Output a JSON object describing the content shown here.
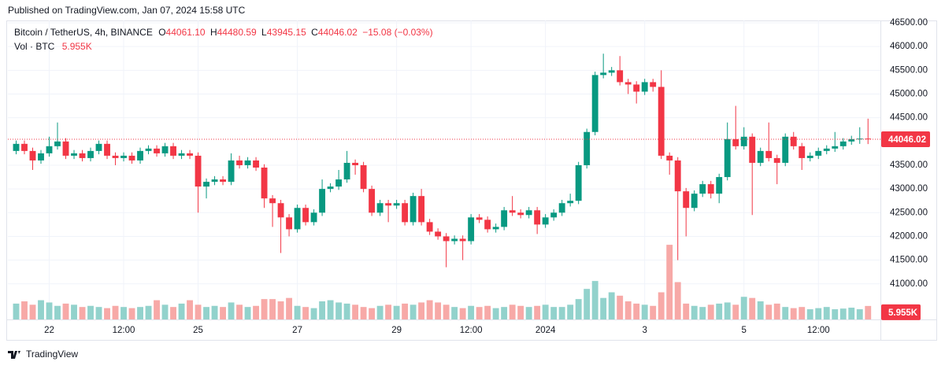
{
  "header": {
    "published": "Published on TradingView.com, Jan 07, 2024 15:58 UTC"
  },
  "chart_data": {
    "type": "candlestick",
    "title": "Bitcoin / TetherUS, 4h, BINANCE",
    "ohlc_keys": [
      "O",
      "H",
      "L",
      "C"
    ],
    "last_labels": {
      "open": "44061.10",
      "high": "44480.59",
      "low": "43945.15",
      "close": "44046.02",
      "change": "−15.08 (−0.03%)"
    },
    "open": [
      43800,
      43950,
      43800,
      43600,
      43750,
      43900,
      44000,
      43700,
      43750,
      43650,
      43800,
      43950,
      43700,
      43650,
      43700,
      43600,
      43800,
      43850,
      43750,
      43900,
      43700,
      43750,
      43700,
      43050,
      43150,
      43200,
      43150,
      43600,
      43500,
      43600,
      43450,
      42800,
      42700,
      42400,
      42150,
      42600,
      42300,
      42500,
      43000,
      43050,
      43200,
      43550,
      43500,
      43000,
      42500,
      42700,
      42650,
      42700,
      42300,
      42850,
      42300,
      42100,
      42000,
      41900,
      41950,
      41900,
      42400,
      42350,
      42150,
      42200,
      42550,
      42500,
      42450,
      42550,
      42250,
      42400,
      42500,
      42700,
      42750,
      43500,
      44200,
      45400,
      45450,
      45500,
      45250,
      45200,
      45050,
      45250,
      45150,
      43700,
      43600,
      42950,
      42600,
      42900,
      43100,
      42900,
      43250,
      44050,
      43900,
      44100,
      43550,
      43800,
      43650,
      43550,
      44100,
      43900,
      43650,
      43700,
      43800,
      43850,
      43900,
      44000,
      44050,
      44061.1
    ],
    "high": [
      44020,
      44020,
      43870,
      43820,
      44100,
      44400,
      44070,
      43820,
      43820,
      43870,
      44020,
      44020,
      43770,
      43770,
      43770,
      43870,
      43920,
      43920,
      43970,
      43970,
      43820,
      43820,
      43770,
      43220,
      43270,
      43270,
      43750,
      43700,
      43670,
      43670,
      43520,
      42870,
      42770,
      42470,
      42670,
      42670,
      42570,
      43200,
      43120,
      43400,
      43800,
      43620,
      43570,
      43070,
      42770,
      42770,
      42770,
      42770,
      42920,
      43000,
      42370,
      42170,
      42070,
      42020,
      42020,
      42470,
      42470,
      42420,
      42270,
      42620,
      42850,
      42570,
      42620,
      42620,
      42470,
      42570,
      42770,
      42900,
      43570,
      44270,
      45470,
      45850,
      45570,
      45800,
      45320,
      45270,
      45320,
      45320,
      45500,
      43770,
      43670,
      43020,
      42970,
      43170,
      43170,
      43320,
      44400,
      44750,
      44300,
      44170,
      43870,
      44400,
      43720,
      44170,
      44200,
      43970,
      43770,
      43870,
      43920,
      44200,
      44070,
      44120,
      44300,
      44480.59
    ],
    "low": [
      43730,
      43730,
      43400,
      43530,
      43680,
      43830,
      43630,
      43630,
      43580,
      43580,
      43730,
      43630,
      43500,
      43580,
      43530,
      43530,
      43730,
      43680,
      43680,
      43630,
      43630,
      43630,
      42500,
      42800,
      43080,
      43080,
      43080,
      43430,
      43430,
      43380,
      42600,
      42200,
      41650,
      42000,
      42080,
      42230,
      42230,
      42430,
      42930,
      42980,
      43130,
      43300,
      42930,
      42430,
      42430,
      42300,
      42580,
      42230,
      42230,
      42230,
      42030,
      41930,
      41350,
      41830,
      41500,
      41830,
      42280,
      42080,
      42080,
      42130,
      42430,
      42380,
      42380,
      42050,
      42180,
      42330,
      42430,
      42630,
      42680,
      43430,
      44130,
      45330,
      45380,
      45180,
      45000,
      44800,
      44980,
      45050,
      43630,
      43300,
      41500,
      42000,
      42530,
      42830,
      42800,
      42700,
      43180,
      43830,
      43830,
      42450,
      43480,
      43580,
      43100,
      43480,
      43830,
      43400,
      43580,
      43630,
      43730,
      43780,
      43830,
      43930,
      43950,
      43945.15
    ],
    "close": [
      43950,
      43800,
      43600,
      43750,
      43900,
      44000,
      43700,
      43750,
      43650,
      43800,
      43950,
      43700,
      43650,
      43700,
      43600,
      43800,
      43850,
      43750,
      43900,
      43700,
      43750,
      43700,
      43050,
      43150,
      43200,
      43150,
      43600,
      43500,
      43600,
      43450,
      42800,
      42700,
      42400,
      42150,
      42600,
      42300,
      42500,
      43000,
      43050,
      43200,
      43550,
      43500,
      43000,
      42500,
      42700,
      42650,
      42700,
      42300,
      42850,
      42300,
      42100,
      42000,
      41900,
      41950,
      41900,
      42400,
      42350,
      42150,
      42200,
      42550,
      42500,
      42450,
      42550,
      42250,
      42400,
      42500,
      42700,
      42750,
      43500,
      44200,
      45400,
      45450,
      45500,
      45250,
      45200,
      45050,
      45250,
      45150,
      43700,
      43600,
      42950,
      42600,
      42900,
      43100,
      42900,
      43250,
      44050,
      43900,
      44100,
      43550,
      43800,
      43650,
      43550,
      44100,
      43900,
      43650,
      43700,
      43800,
      43850,
      43900,
      44000,
      44050,
      44061.1,
      44046.02
    ],
    "up_color": "#089981",
    "down_color": "#f23645",
    "xlim": [
      -1,
      104.5
    ],
    "xticks": [
      {
        "value": 4,
        "label": "22"
      },
      {
        "value": 13,
        "label": "12:00"
      },
      {
        "value": 22,
        "label": "25"
      },
      {
        "value": 34,
        "label": "27"
      },
      {
        "value": 46,
        "label": "29"
      },
      {
        "value": 55,
        "label": "12:00"
      },
      {
        "value": 64,
        "label": "2024"
      },
      {
        "value": 76,
        "label": "3"
      },
      {
        "value": 88,
        "label": "5"
      },
      {
        "value": 97,
        "label": "12:00"
      }
    ],
    "ylim": [
      40250,
      46550
    ],
    "yticks": [
      {
        "value": 41000,
        "label": "41000.00"
      },
      {
        "value": 41500,
        "label": "41500.00"
      },
      {
        "value": 42000,
        "label": "42000.00"
      },
      {
        "value": 42500,
        "label": "42500.00"
      },
      {
        "value": 43000,
        "label": "43000.00"
      },
      {
        "value": 43500,
        "label": "43500.00"
      },
      {
        "value": 44500,
        "label": "44500.00"
      },
      {
        "value": 45000,
        "label": "45000.00"
      },
      {
        "value": 45500,
        "label": "45500.00"
      },
      {
        "value": 46000,
        "label": "46000.00"
      },
      {
        "value": 46500,
        "label": "46500.00"
      }
    ],
    "grid": true,
    "volume": {
      "name": "Vol · BTC",
      "last_label": "5.955K",
      "up_color": "#92d2cc",
      "down_color": "#f7a9a7",
      "ylim": [
        0,
        40000
      ],
      "values": [
        7000,
        8000,
        6500,
        8500,
        7500,
        6000,
        7000,
        6500,
        5500,
        6000,
        5500,
        5000,
        6000,
        5500,
        5000,
        5500,
        6000,
        8500,
        6500,
        5500,
        7000,
        8500,
        6500,
        5500,
        6000,
        5500,
        7500,
        6500,
        5500,
        6000,
        9000,
        9000,
        8000,
        9500,
        6000,
        5500,
        5000,
        8000,
        8500,
        7500,
        7000,
        6500,
        5500,
        5000,
        6000,
        6500,
        6000,
        7000,
        6500,
        7500,
        8500,
        7500,
        6500,
        5500,
        5000,
        6000,
        5500,
        6000,
        5000,
        5500,
        6500,
        6000,
        5500,
        6000,
        6500,
        5500,
        5500,
        6500,
        9000,
        13500,
        17000,
        9500,
        12000,
        10500,
        8000,
        7000,
        6500,
        6000,
        12000,
        33000,
        16500,
        7000,
        6000,
        5500,
        6500,
        7000,
        7500,
        6500,
        10000,
        9500,
        8000,
        6500,
        7000,
        5500,
        5000,
        5500,
        4500,
        5000,
        5500,
        4500,
        4800,
        5200,
        4500,
        5955
      ]
    }
  },
  "footer": {
    "brand": "TradingView"
  }
}
